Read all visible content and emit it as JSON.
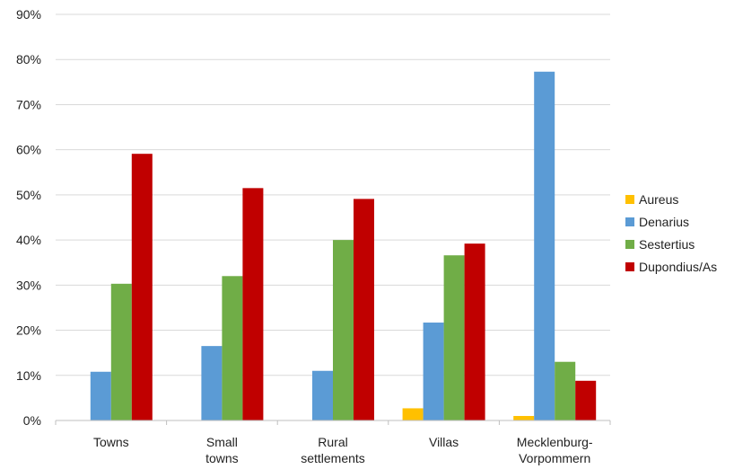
{
  "chart_data": {
    "type": "bar",
    "categories": [
      [
        "Towns"
      ],
      [
        "Small",
        "towns"
      ],
      [
        "Rural",
        "settlements"
      ],
      [
        "Villas"
      ],
      [
        "Mecklenburg-",
        "Vorpommern"
      ]
    ],
    "series": [
      {
        "name": "Aureus",
        "color": "#FFC000",
        "values": [
          0,
          0,
          0,
          2.7,
          1.0
        ]
      },
      {
        "name": "Denarius",
        "color": "#5B9BD5",
        "values": [
          10.8,
          16.5,
          11.0,
          21.7,
          77.3
        ]
      },
      {
        "name": "Sestertius",
        "color": "#70AD47",
        "values": [
          30.3,
          32.0,
          40.0,
          36.6,
          13.0
        ]
      },
      {
        "name": "Dupondius/As",
        "color": "#C00000",
        "values": [
          59.1,
          51.5,
          49.1,
          39.2,
          8.8
        ]
      }
    ],
    "yticks": [
      "0%",
      "10%",
      "20%",
      "30%",
      "40%",
      "50%",
      "60%",
      "70%",
      "80%",
      "90%"
    ],
    "ylim": [
      0,
      90
    ],
    "grid": true,
    "legend": "right",
    "title": "",
    "xlabel": "",
    "ylabel": ""
  }
}
